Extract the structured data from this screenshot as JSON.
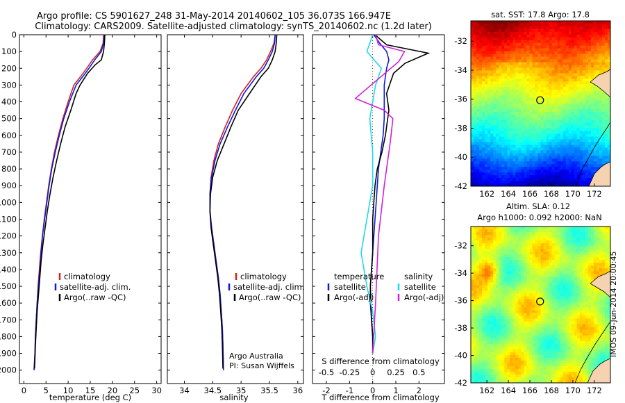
{
  "header": {
    "title_line1": "Argo profile: CS 5901627_248 31-May-2014 20140602_105 36.073S 166.947E",
    "title_line2": "Climatology: CARS2009. Satellite-adjusted climatology: synTS_20140602.nc (1.2d later)"
  },
  "stamp": "IMOS 09-Jun-2014 20:00:45",
  "colors": {
    "climatology": "#d42020",
    "satellite": "#0a1ad8",
    "argo": "#000000",
    "sal_satellite": "#22d8e8",
    "sal_argo": "#d020d8"
  },
  "chart_data": [
    {
      "id": "temperature",
      "type": "line",
      "xlabel": "temperature (deg C)",
      "xlim": [
        -1,
        31
      ],
      "xticks": [
        0,
        5,
        10,
        15,
        20,
        25,
        30
      ],
      "ylim": [
        0,
        2080
      ],
      "yticks": [
        0,
        100,
        200,
        300,
        400,
        500,
        600,
        700,
        800,
        900,
        1000,
        1100,
        1200,
        1300,
        1400,
        1500,
        1600,
        1700,
        1800,
        1900,
        2000
      ],
      "legend": [
        "climatology",
        "satellite-adj. clim.",
        "Argo(..raw -QC)"
      ],
      "legend_location": "lower-middle",
      "series": [
        {
          "name": "climatology",
          "x": [
            18.0,
            17.9,
            17.2,
            15.5,
            14.2,
            12.8,
            11.3,
            10.0,
            8.8,
            7.8,
            6.9,
            6.2,
            5.6,
            5.1,
            4.6,
            4.2,
            3.8,
            3.5,
            3.2,
            3.0,
            2.8,
            2.6,
            2.5,
            2.4,
            2.3
          ],
          "y": [
            0,
            50,
            100,
            150,
            200,
            250,
            300,
            400,
            500,
            600,
            700,
            800,
            900,
            1000,
            1100,
            1200,
            1300,
            1400,
            1500,
            1600,
            1700,
            1800,
            1900,
            1950,
            2000
          ]
        },
        {
          "name": "satellite-adj. clim.",
          "x": [
            18.2,
            18.0,
            17.5,
            16.0,
            14.7,
            13.3,
            11.8,
            10.3,
            9.0,
            8.0,
            7.1,
            6.3,
            5.7,
            5.2,
            4.7,
            4.2,
            3.9,
            3.6,
            3.3,
            3.0,
            2.8,
            2.6,
            2.5,
            2.4,
            2.3
          ],
          "y": [
            0,
            50,
            100,
            150,
            200,
            250,
            300,
            400,
            500,
            600,
            700,
            800,
            900,
            1000,
            1100,
            1200,
            1300,
            1400,
            1500,
            1600,
            1700,
            1800,
            1900,
            1950,
            2000
          ]
        },
        {
          "name": "Argo(..raw -QC)",
          "x": [
            18.3,
            18.2,
            18.0,
            17.5,
            16.1,
            14.4,
            12.7,
            11.8,
            10.6,
            9.3,
            8.3,
            7.4,
            6.6,
            5.9,
            5.3,
            4.8,
            4.3,
            3.9,
            3.6,
            3.3,
            3.0,
            2.8,
            2.6,
            2.5,
            2.4
          ],
          "y": [
            0,
            50,
            100,
            150,
            180,
            230,
            300,
            350,
            450,
            550,
            650,
            750,
            850,
            950,
            1050,
            1150,
            1250,
            1350,
            1450,
            1550,
            1650,
            1750,
            1850,
            1930,
            1990
          ]
        }
      ]
    },
    {
      "id": "salinity",
      "type": "line",
      "xlabel": "salinity",
      "xlim": [
        33.7,
        36.1
      ],
      "xticks": [
        34,
        34.5,
        35,
        35.5,
        36
      ],
      "ylim": [
        0,
        2080
      ],
      "legend": [
        "climatology",
        "satellite-adj. clim.",
        "Argo(..raw -QC)"
      ],
      "legend_location": "lower-middle",
      "annotation_line1": "Argo Australia",
      "annotation_line2": "PI: Susan Wijffels",
      "series": [
        {
          "name": "climatology",
          "x": [
            35.6,
            35.58,
            35.52,
            35.45,
            35.35,
            35.22,
            35.0,
            34.85,
            34.72,
            34.6,
            34.52,
            34.47,
            34.45,
            34.45,
            34.48,
            34.52,
            34.56,
            34.6,
            34.63,
            34.65,
            34.67,
            34.68,
            34.69
          ],
          "y": [
            0,
            50,
            100,
            150,
            200,
            250,
            350,
            450,
            550,
            650,
            750,
            850,
            950,
            1050,
            1150,
            1250,
            1350,
            1450,
            1550,
            1650,
            1750,
            1850,
            2000
          ]
        },
        {
          "name": "satellite-adj. clim.",
          "x": [
            35.6,
            35.59,
            35.55,
            35.48,
            35.4,
            35.27,
            35.05,
            34.9,
            34.76,
            34.63,
            34.54,
            34.48,
            34.45,
            34.45,
            34.48,
            34.52,
            34.56,
            34.6,
            34.63,
            34.65,
            34.67,
            34.68,
            34.69
          ],
          "y": [
            0,
            50,
            100,
            150,
            200,
            250,
            350,
            450,
            550,
            650,
            750,
            850,
            950,
            1050,
            1150,
            1250,
            1350,
            1450,
            1550,
            1650,
            1750,
            1850,
            2000
          ]
        },
        {
          "name": "Argo(..raw -QC)",
          "x": [
            35.63,
            35.62,
            35.6,
            35.55,
            35.48,
            35.35,
            35.15,
            34.95,
            34.82,
            34.7,
            34.58,
            34.5,
            34.46,
            34.45,
            34.47,
            34.51,
            34.55,
            34.59,
            34.62,
            34.64,
            34.66,
            34.67,
            34.68
          ],
          "y": [
            0,
            50,
            100,
            150,
            200,
            250,
            350,
            450,
            550,
            650,
            750,
            850,
            950,
            1050,
            1150,
            1250,
            1350,
            1450,
            1550,
            1650,
            1750,
            1850,
            1990
          ]
        }
      ]
    },
    {
      "id": "difference",
      "type": "line",
      "xlabel_bottom": "T difference from climatology",
      "xlabel_top": "S difference from climatology",
      "xlim": [
        -2.6,
        3.1
      ],
      "xticks": [
        -2,
        -1,
        0,
        1,
        2
      ],
      "top_ticks": [
        "-0.5",
        "-0.25",
        "0",
        "0.25",
        "0.5"
      ],
      "ylim": [
        0,
        2080
      ],
      "legend_temperature_title": "temperature",
      "legend_salinity_title": "salinity",
      "legend_temperature": [
        "satellite",
        "Argo(-adj)"
      ],
      "legend_salinity": [
        "satellite",
        "Argo(-adj)"
      ],
      "series": [
        {
          "name": "satellite",
          "group": "temperature",
          "x": [
            0.05,
            0.3,
            0.6,
            0.7,
            0.6,
            0.5,
            0.5,
            0.5,
            0.45,
            0.35,
            0.25,
            0.2,
            0.15,
            0.1,
            0.05,
            0.0,
            -0.05,
            -0.1,
            -0.1,
            -0.05,
            0.0,
            0.0
          ],
          "y": [
            0,
            50,
            100,
            150,
            200,
            300,
            400,
            500,
            600,
            700,
            800,
            900,
            1000,
            1100,
            1200,
            1300,
            1400,
            1500,
            1600,
            1700,
            1800,
            1900
          ]
        },
        {
          "name": "Argo(-adj)",
          "group": "temperature",
          "x": [
            0.1,
            0.6,
            2.4,
            1.4,
            0.9,
            0.6,
            0.7,
            0.65,
            0.55,
            0.4,
            0.2,
            0.1,
            0.05,
            0.0,
            0.0,
            -0.05,
            -0.1,
            -0.05,
            0.0,
            0.0
          ],
          "y": [
            0,
            60,
            110,
            170,
            230,
            350,
            450,
            500,
            600,
            700,
            800,
            900,
            1000,
            1100,
            1300,
            1400,
            1500,
            1700,
            1800,
            1900
          ]
        },
        {
          "name": "satellite",
          "group": "salinity",
          "x": [
            0.0,
            -0.1,
            0.15,
            0.05,
            -0.05,
            0.0,
            0.0,
            -0.1,
            -0.2,
            -0.1,
            0.0,
            0.05,
            0.0
          ],
          "y": [
            0,
            100,
            200,
            300,
            500,
            700,
            900,
            1100,
            1300,
            1500,
            1650,
            1800,
            1900
          ]
        },
        {
          "name": "Argo(-adj)",
          "group": "salinity",
          "x": [
            0.05,
            0.1,
            0.55,
            0.45,
            -0.3,
            0.2,
            0.35,
            0.3,
            0.2,
            0.1,
            0.05,
            0.0
          ],
          "y": [
            0,
            60,
            100,
            160,
            380,
            450,
            500,
            650,
            900,
            1200,
            1600,
            1900
          ]
        }
      ]
    },
    {
      "id": "sst_map",
      "type": "heatmap",
      "title": "sat. SST: 17.8 Argo: 17.8",
      "xticks": [
        162,
        164,
        166,
        168,
        170,
        172
      ],
      "yticks": [
        -32,
        -34,
        -36,
        -38,
        -40,
        -42
      ],
      "xlim": [
        160.5,
        173.5
      ],
      "ylim": [
        -42,
        -30.6
      ],
      "argo_position": [
        166.95,
        -36.07
      ]
    },
    {
      "id": "sla_map",
      "type": "heatmap",
      "title_line1": "Altim. SLA: 0.12",
      "title_line2": "Argo h1000: 0.092 h2000: NaN",
      "xticks": [
        162,
        164,
        166,
        168,
        170,
        172
      ],
      "yticks": [
        -32,
        -34,
        -36,
        -38,
        -40,
        -42
      ],
      "xlim": [
        160.5,
        173.5
      ],
      "ylim": [
        -42,
        -30.6
      ],
      "argo_position": [
        166.95,
        -36.07
      ]
    }
  ]
}
